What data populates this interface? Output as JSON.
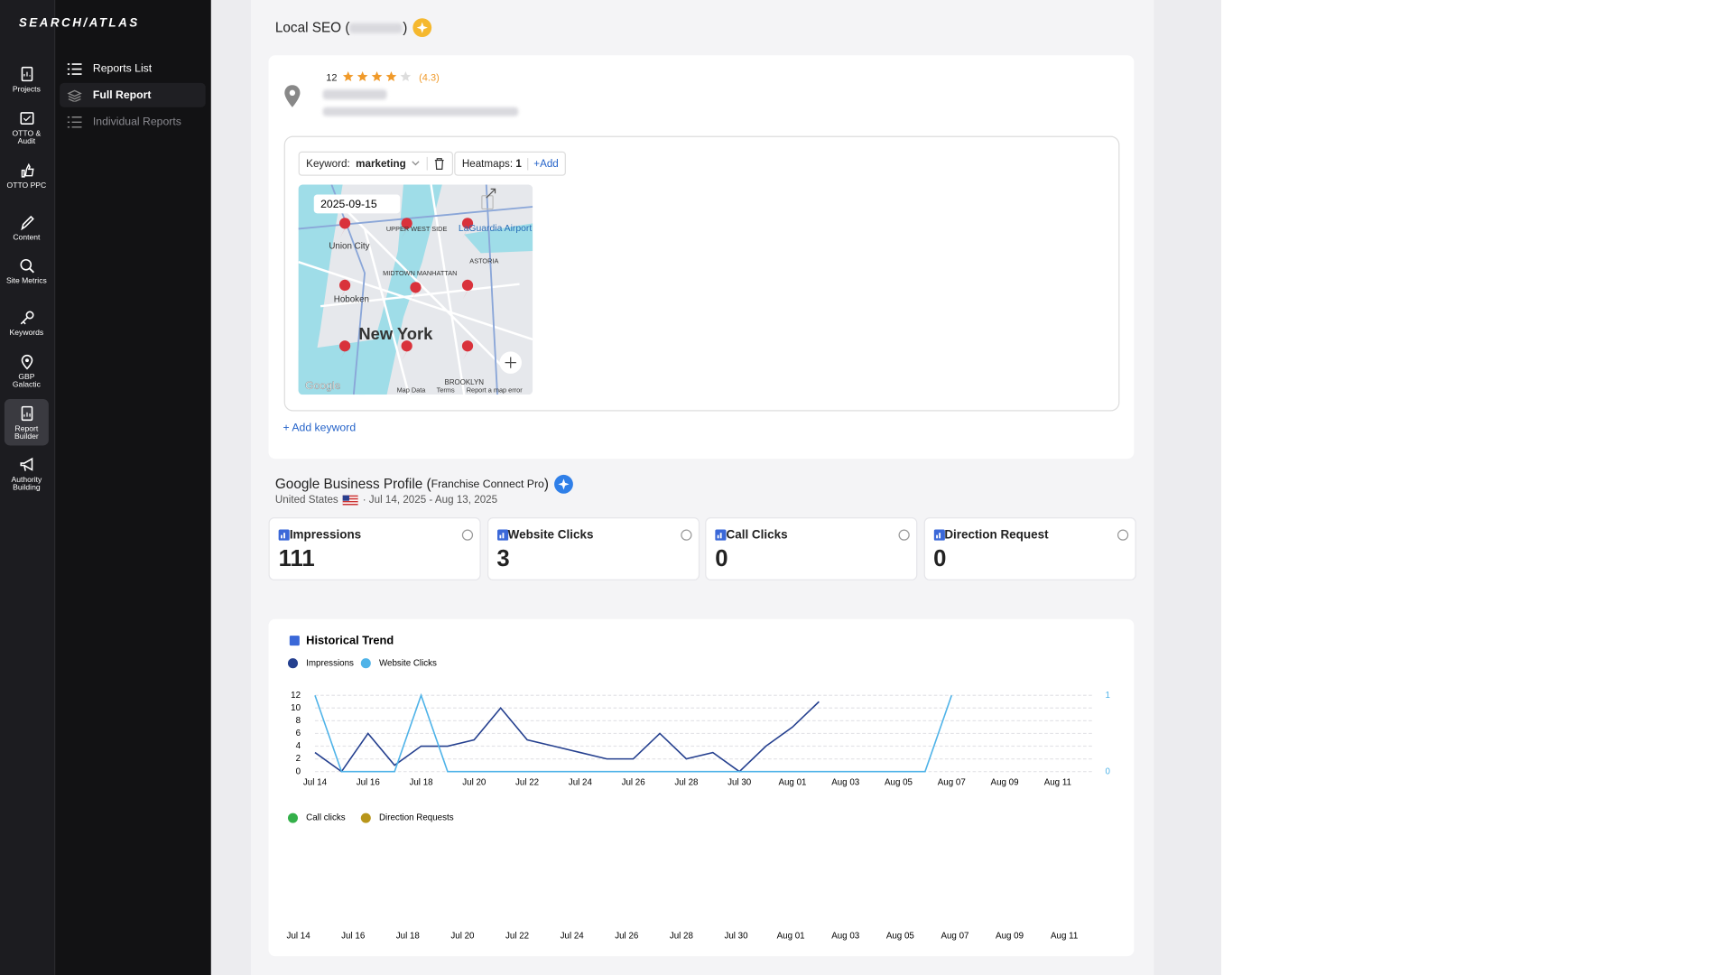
{
  "ui": {
    "logo": "SEARCH/ATLAS",
    "nav": [
      "Projects",
      "OTTO & Audit",
      "OTTO PPC",
      "Content",
      "Site Metrics",
      "Keywords",
      "GBP Galactic",
      "Report Builder",
      "Authority Building"
    ],
    "submenu": [
      "Reports List",
      "Full Report",
      "Individual Reports"
    ],
    "local_seo": {
      "title_prefix": "Local SEO (",
      "title_suffix": ")",
      "review_count": 12,
      "rating": {
        "value": 4.3,
        "label": "(4.3)"
      },
      "keyword_label": "Keyword:",
      "keyword": "marketing",
      "heatmaps_label": "Heatmaps:",
      "heatmaps": 1,
      "add": "+Add",
      "map": {
        "date": "2025-09-15",
        "labels": [
          "UPPER WEST SIDE",
          "Union City",
          "LaGuardia Airport",
          "ASTORIA",
          "MIDTOWN MANHATTAN",
          "Hoboken",
          "New York",
          "BROOKLYN"
        ],
        "google": "Google",
        "attribution": [
          "Map Data",
          "Terms",
          "Report a map error"
        ]
      },
      "add_keyword": "+ Add keyword"
    },
    "gbp": {
      "title_prefix": "Google Business Profile (",
      "business": "Franchise Connect Pro",
      "title_suffix": ")",
      "country": "United States",
      "separator": "·",
      "date_range": "Jul 14, 2025 - Aug 13, 2025",
      "metrics": [
        {
          "label": "Impressions",
          "value": 111
        },
        {
          "label": "Website Clicks",
          "value": 3
        },
        {
          "label": "Call Clicks",
          "value": 0
        },
        {
          "label": "Direction Request",
          "value": 0
        }
      ]
    }
  },
  "chart_data": [
    {
      "type": "line",
      "title": "Historical Trend",
      "categories": [
        "Jul 14",
        null,
        "Jul 16",
        null,
        "Jul 18",
        null,
        "Jul 20",
        null,
        "Jul 22",
        null,
        "Jul 24",
        null,
        "Jul 26",
        null,
        "Jul 28",
        null,
        "Jul 30",
        null,
        "Aug 01",
        null,
        "Aug 03",
        null,
        "Aug 05",
        null,
        "Aug 07",
        null,
        "Aug 09",
        null,
        "Aug 11",
        null,
        null
      ],
      "series": [
        {
          "name": "Impressions",
          "color": "#25408f",
          "values": [
            3,
            0,
            6,
            1,
            4,
            4,
            5,
            10,
            5,
            4,
            3,
            2,
            2,
            6,
            2,
            3,
            0,
            4,
            7,
            11,
            null,
            null,
            null,
            null,
            null,
            null,
            null,
            null,
            null,
            null,
            null
          ]
        },
        {
          "name": "Website Clicks",
          "color": "#4fb3e8",
          "axis": "y2",
          "values": [
            1,
            0,
            0,
            0,
            1,
            0,
            0,
            0,
            0,
            0,
            0,
            0,
            0,
            0,
            0,
            0,
            0,
            0,
            0,
            0,
            0,
            0,
            0,
            0,
            1,
            null,
            null,
            null,
            null,
            null,
            null
          ]
        }
      ],
      "ylim": [
        0,
        12
      ],
      "yticks": [
        0,
        2,
        4,
        6,
        8,
        10,
        12
      ],
      "y2lim": [
        0,
        1
      ],
      "y2ticks": [
        0,
        1
      ],
      "grid": true
    },
    {
      "type": "line",
      "categories": [
        "Jul 14",
        null,
        "Jul 16",
        null,
        "Jul 18",
        null,
        "Jul 20",
        null,
        "Jul 22",
        null,
        "Jul 24",
        null,
        "Jul 26",
        null,
        "Jul 28",
        null,
        "Jul 30",
        null,
        "Aug 01",
        null,
        "Aug 03",
        null,
        "Aug 05",
        null,
        "Aug 07",
        null,
        "Aug 09",
        null,
        "Aug 11",
        null,
        null
      ],
      "series": [
        {
          "name": "Call clicks",
          "color": "#34b04a"
        },
        {
          "name": "Direction Requests",
          "color": "#b8961a"
        }
      ]
    }
  ]
}
